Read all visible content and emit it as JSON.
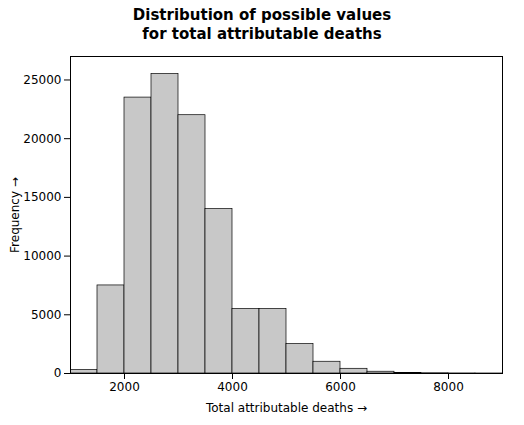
{
  "chart_data": {
    "type": "histogram",
    "title": "Distribution of possible values\nfor total attributable deaths",
    "xlabel": "Total attributable deaths",
    "ylabel": "Frequency",
    "bins": [
      1000,
      1500,
      2000,
      2500,
      3000,
      3500,
      4000,
      4500,
      5000,
      5500,
      6000,
      6500,
      7000,
      7500,
      8000,
      8500,
      9000
    ],
    "values": [
      300,
      7500,
      23500,
      25500,
      22000,
      14000,
      5500,
      5500,
      2500,
      1000,
      400,
      150,
      50,
      20,
      5,
      1
    ],
    "color": "#c8c8c8",
    "xlim": [
      1000,
      9000
    ],
    "ylim": [
      0,
      27000
    ],
    "xticks": [
      2000,
      4000,
      6000,
      8000
    ],
    "yticks": [
      0,
      5000,
      10000,
      15000,
      20000,
      25000
    ],
    "grid": false
  }
}
